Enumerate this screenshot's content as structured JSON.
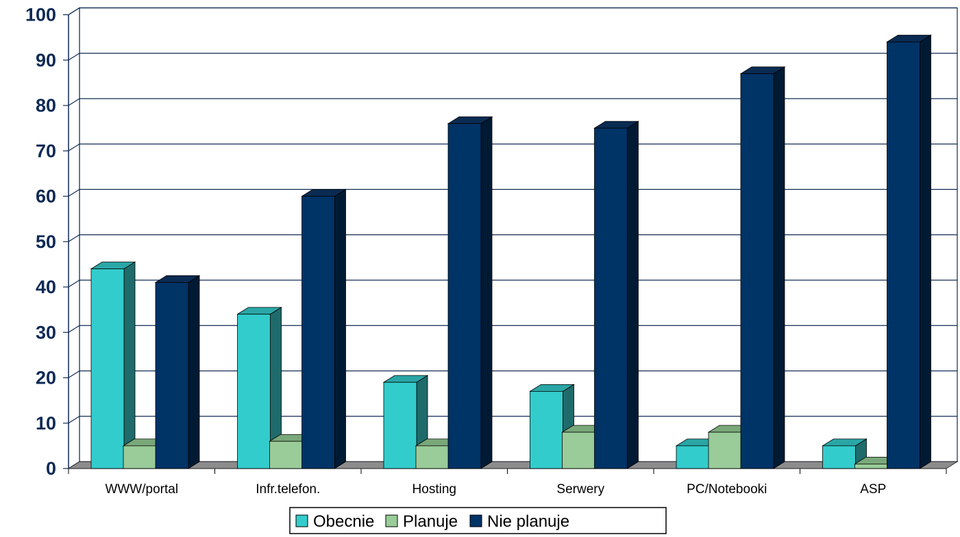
{
  "chart_data": {
    "type": "bar",
    "categories": [
      "WWW/portal",
      "Infr.telefon.",
      "Hosting",
      "Serwery",
      "PC/Notebooki",
      "ASP"
    ],
    "series": [
      {
        "name": "Obecnie",
        "values": [
          44,
          34,
          19,
          17,
          5,
          5
        ],
        "color": "#33cccc",
        "side_color": "#1f6b6b",
        "top_color": "#2aa6a6"
      },
      {
        "name": "Planuje",
        "values": [
          5,
          6,
          5,
          8,
          8,
          1
        ],
        "color": "#99cc99",
        "side_color": "#4a7a4a",
        "top_color": "#7aa87a"
      },
      {
        "name": "Nie planuje",
        "values": [
          41,
          60,
          76,
          75,
          87,
          94
        ],
        "color": "#003366",
        "side_color": "#001a33",
        "top_color": "#0a2b52"
      }
    ],
    "ylim": [
      0,
      100
    ],
    "yticks": [
      0,
      10,
      20,
      30,
      40,
      50,
      60,
      70,
      80,
      90,
      100
    ],
    "grid": true,
    "legend_position": "bottom",
    "title": "",
    "xlabel": "",
    "ylabel": ""
  }
}
